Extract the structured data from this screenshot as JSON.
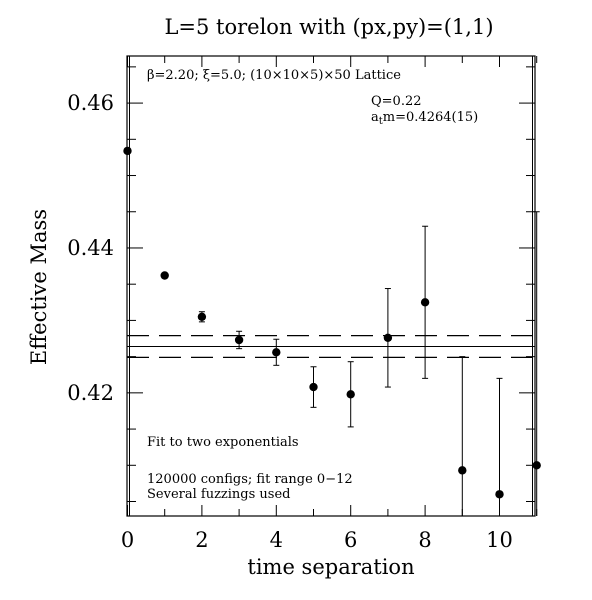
{
  "chart_data": {
    "type": "scatter",
    "title": "L=5 torelon with (px,py)=(1,1)",
    "xlabel": "time separation",
    "ylabel": "Effective Mass",
    "xlim": [
      0,
      11
    ],
    "ylim": [
      0.403,
      0.4665
    ],
    "x_ticks": [
      0,
      2,
      4,
      6,
      8,
      10
    ],
    "x_tick_labels": [
      "0",
      "2",
      "4",
      "6",
      "8",
      "10"
    ],
    "y_ticks": [
      0.42,
      0.44,
      0.46
    ],
    "y_tick_labels": [
      "0.42",
      "0.44",
      "0.46"
    ],
    "grid": false,
    "legend": "none",
    "series": [
      {
        "points": [
          {
            "x": 0,
            "y": 0.4534,
            "err": 0.0002
          },
          {
            "x": 1,
            "y": 0.4362,
            "err": 0.0003
          },
          {
            "x": 2,
            "y": 0.4305,
            "err": 0.0007
          },
          {
            "x": 3,
            "y": 0.4273,
            "err": 0.0012
          },
          {
            "x": 4,
            "y": 0.4256,
            "err": 0.0018
          },
          {
            "x": 5,
            "y": 0.4208,
            "err": 0.0028
          },
          {
            "x": 6,
            "y": 0.4198,
            "err": 0.0045
          },
          {
            "x": 7,
            "y": 0.4276,
            "err": 0.0068
          },
          {
            "x": 8,
            "y": 0.4325,
            "err": 0.0105
          },
          {
            "x": 9,
            "y": 0.4093,
            "err": 0.0157
          },
          {
            "x": 10,
            "y": 0.406,
            "err": 0.016
          },
          {
            "x": 11,
            "y": 0.41,
            "err": 0.035
          }
        ]
      }
    ],
    "fit": {
      "value": 0.4264,
      "error": 0.0015
    },
    "annotations": {
      "lattice": "β=2.20; ξ=5.0; (10×10×5)×50 Lattice",
      "q": "Q=0.22",
      "mass_prefix": "a",
      "mass_sub": "t",
      "mass_suffix": "m=0.4264(15)",
      "fit_note": "Fit to two exponentials",
      "configs": "120000 configs; fit range 0−12",
      "fuzzings": "Several fuzzings used"
    }
  }
}
